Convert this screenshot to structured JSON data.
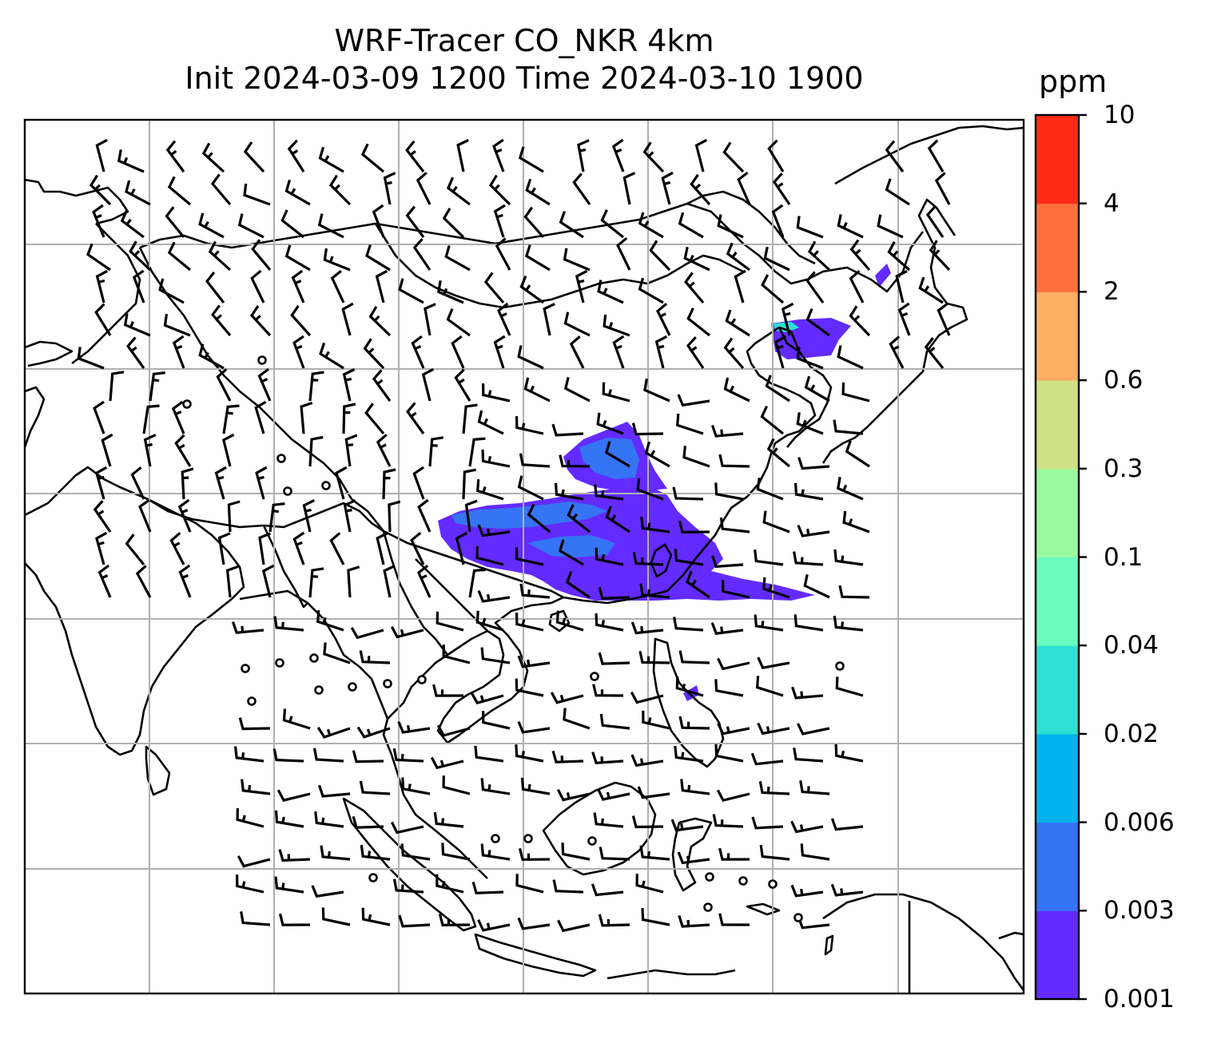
{
  "title": {
    "line1": "WRF-Tracer CO_NKR 4km",
    "line2": "Init 2024-03-09 1200 Time 2024-03-10 1900"
  },
  "colorbar": {
    "unit": "ppm",
    "levels": [
      "0.001",
      "0.003",
      "0.006",
      "0.02",
      "0.04",
      "0.1",
      "0.3",
      "0.6",
      "2",
      "4",
      "10"
    ],
    "colors": [
      "#632bff",
      "#3574f4",
      "#00b2ee",
      "#2fe0d5",
      "#6afcbe",
      "#9bfa9f",
      "#cfe186",
      "#fdae61",
      "#ff703d",
      "#ff2a14"
    ]
  },
  "map_layers": {
    "coastlines": "black",
    "gridlines": "#b0b0b0",
    "wind_barbs": "black"
  }
}
